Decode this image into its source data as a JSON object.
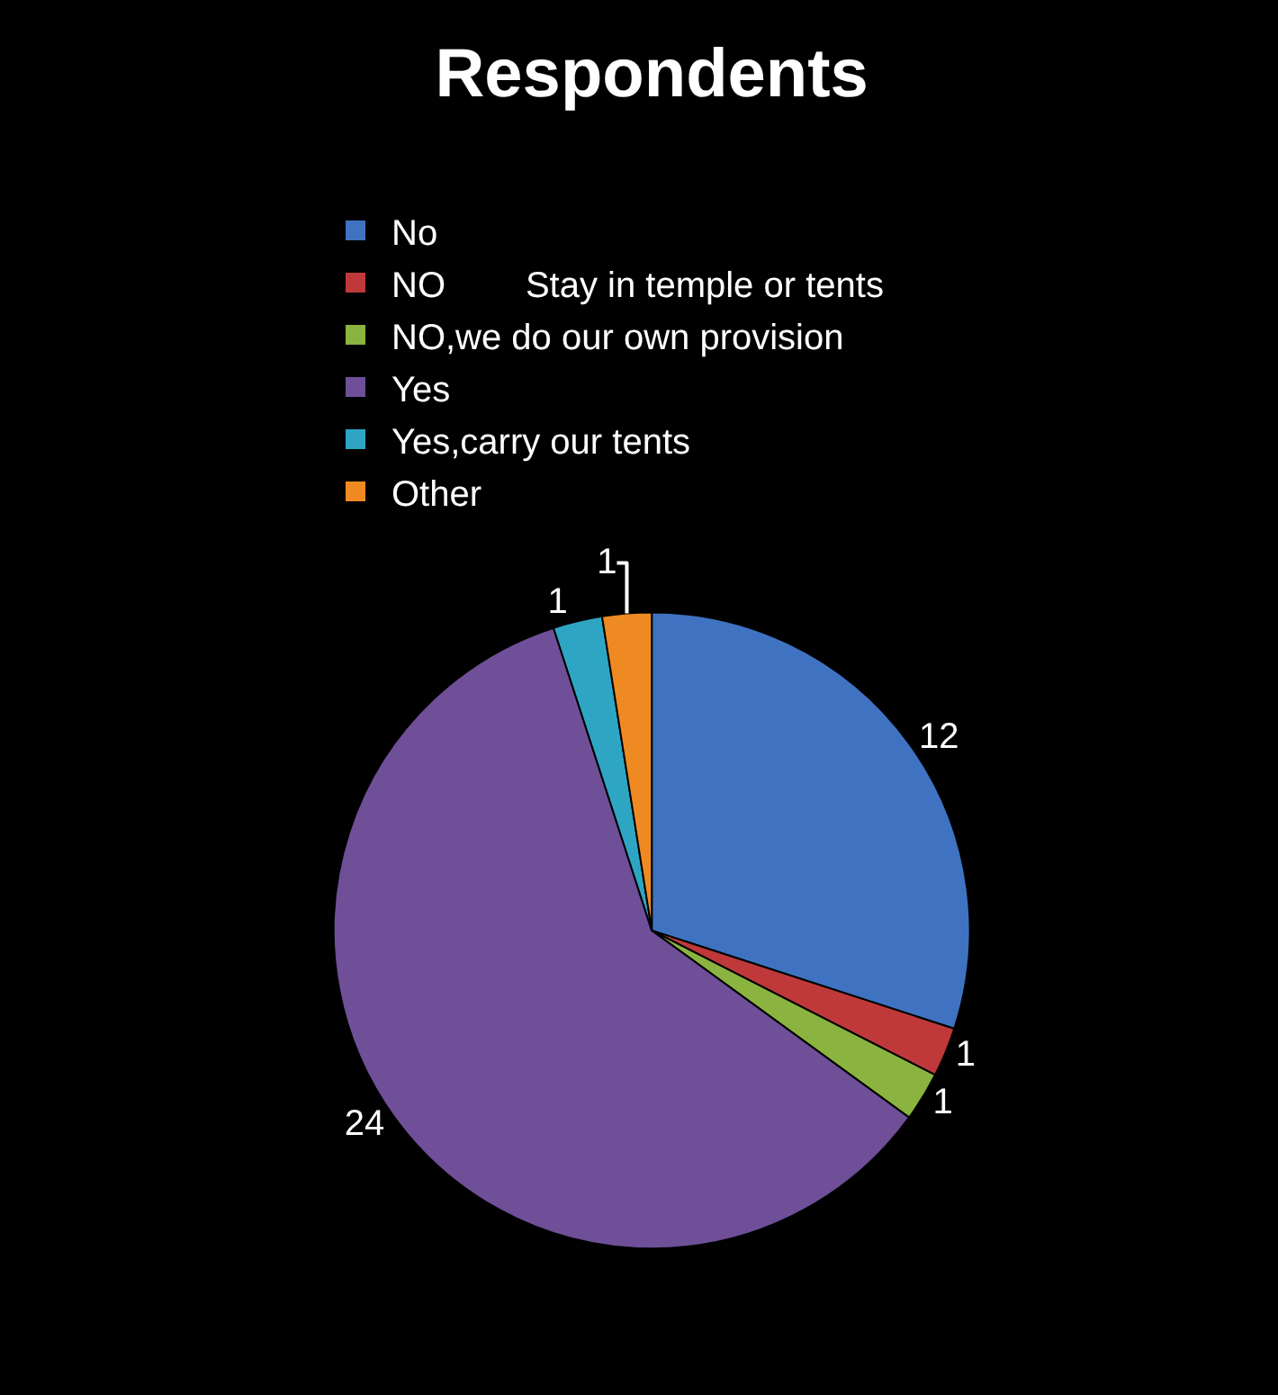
{
  "chart_data": {
    "type": "pie",
    "title": "Respondents",
    "categories": [
      "No",
      "NO        Stay in temple or tents",
      "NO,we do our own provision",
      "Yes",
      "Yes,carry our tents",
      "Other"
    ],
    "values": [
      12,
      1,
      1,
      24,
      1,
      1
    ],
    "colors": [
      "#3f73c2",
      "#c0393a",
      "#8ab43f",
      "#6e4f98",
      "#2fa5c4",
      "#ef8a23"
    ],
    "data_labels": true,
    "legend": "top"
  }
}
